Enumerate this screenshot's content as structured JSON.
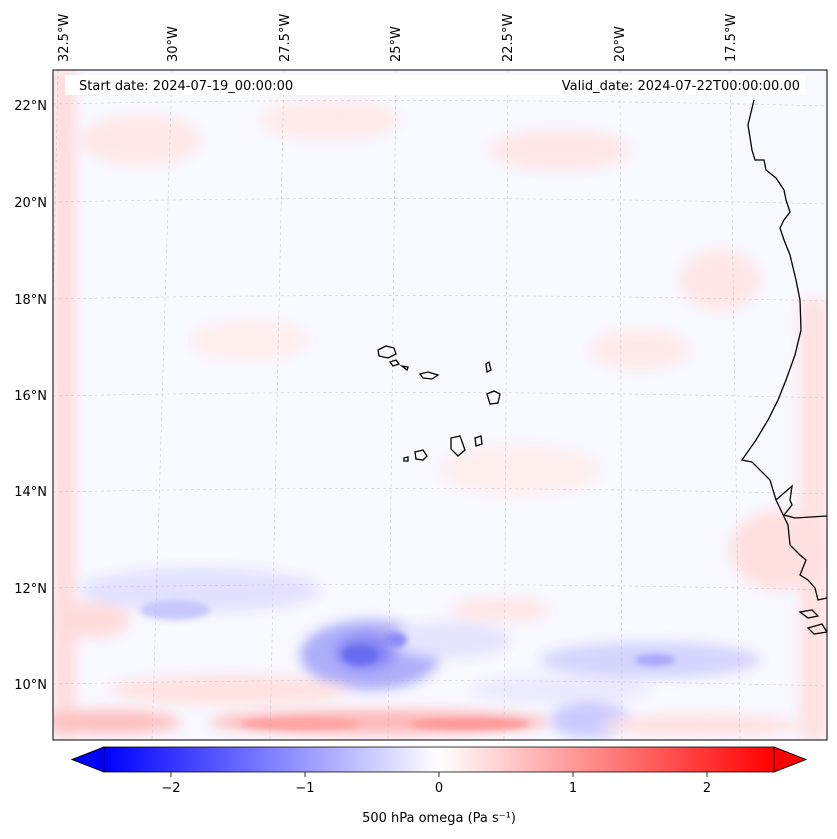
{
  "header": {
    "start_date": "Start date: 2024-07-19_00:00:00",
    "valid_date": "Valid_date: 2024-07-22T00:00:00.00"
  },
  "map": {
    "lon_labels": [
      "32.5°W",
      "30°W",
      "27.5°W",
      "25°W",
      "22.5°W",
      "20°W",
      "17.5°W"
    ],
    "lat_labels": [
      "22°N",
      "20°N",
      "18°N",
      "16°N",
      "14°N",
      "12°N",
      "10°N"
    ],
    "gridlines": true,
    "field": "500 hPa omega",
    "notable_features": [
      "Cape Verde Islands",
      "West African coastline"
    ]
  },
  "colorbar": {
    "label": "500 hPa omega (Pa s⁻¹)",
    "ticks": [
      "−2",
      "−1",
      "0",
      "1",
      "2"
    ],
    "range": [
      -2.5,
      2.5
    ],
    "colormap": "bwr",
    "extend": "both",
    "colors": {
      "negative": "#0000ff",
      "zero": "#ffffff",
      "positive": "#ff0000"
    }
  }
}
